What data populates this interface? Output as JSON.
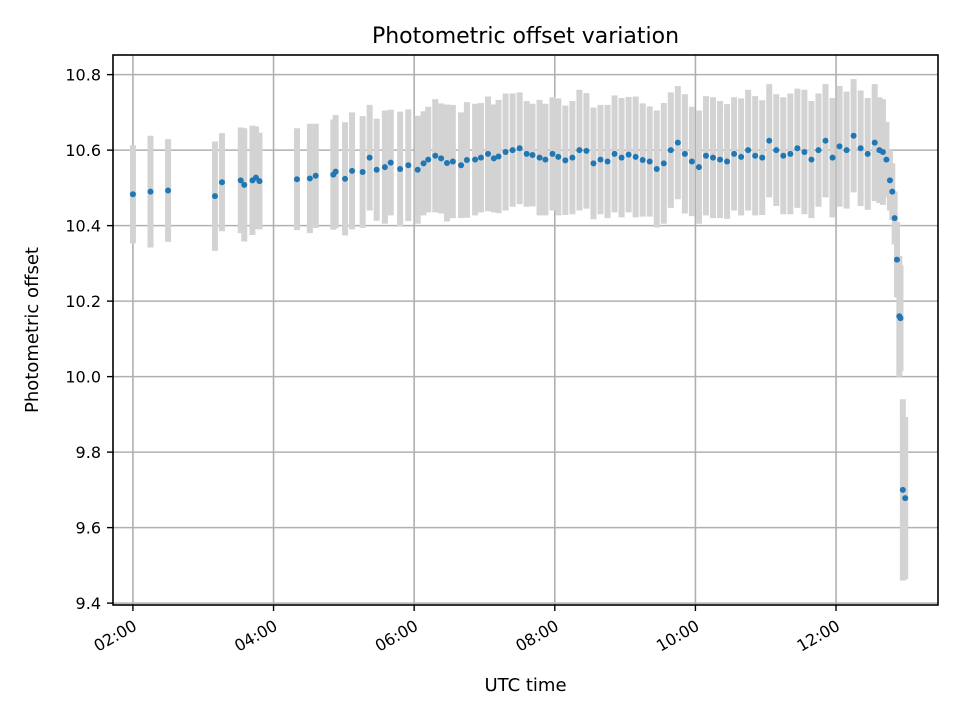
{
  "chart_data": {
    "type": "scatter",
    "title": "Photometric offset variation",
    "xlabel": "UTC time",
    "ylabel": "Photometric offset",
    "grid": true,
    "legend": "none",
    "xlim": [
      "01:43",
      "13:27"
    ],
    "ylim": [
      9.395,
      10.852
    ],
    "x_ticks": [
      "02:00",
      "04:00",
      "06:00",
      "08:00",
      "10:00",
      "12:00"
    ],
    "y_ticks": [
      "9.4",
      "9.6",
      "9.8",
      "10.0",
      "10.2",
      "10.4",
      "10.6",
      "10.8"
    ],
    "colors": {
      "points": "#1f77b4",
      "error_bars": "#d3d3d3",
      "grid": "#b0b0b0"
    },
    "series": [
      {
        "x": [
          "02:00",
          "02:15",
          "02:30",
          "03:10",
          "03:16",
          "03:32",
          "03:35",
          "03:42",
          "03:45",
          "03:48",
          "04:20",
          "04:31",
          "04:36",
          "04:51",
          "04:53",
          "05:01",
          "05:07",
          "05:16",
          "05:22",
          "05:28",
          "05:35",
          "05:40",
          "05:48",
          "05:55",
          "06:03",
          "06:08",
          "06:12",
          "06:18",
          "06:23",
          "06:28",
          "06:33",
          "06:40",
          "06:45",
          "06:52",
          "06:57",
          "07:03",
          "07:08",
          "07:12",
          "07:18",
          "07:24",
          "07:30",
          "07:36",
          "07:41",
          "07:47",
          "07:52",
          "07:58",
          "08:03",
          "08:09",
          "08:15",
          "08:21",
          "08:27",
          "08:33",
          "08:39",
          "08:45",
          "08:51",
          "08:57",
          "09:03",
          "09:09",
          "09:15",
          "09:21",
          "09:27",
          "09:33",
          "09:39",
          "09:45",
          "09:51",
          "09:57",
          "10:03",
          "10:09",
          "10:15",
          "10:21",
          "10:27",
          "10:33",
          "10:39",
          "10:45",
          "10:51",
          "10:57",
          "11:03",
          "11:09",
          "11:15",
          "11:21",
          "11:27",
          "11:33",
          "11:39",
          "11:45",
          "11:51",
          "11:57",
          "12:03",
          "12:09",
          "12:15",
          "12:21",
          "12:27",
          "12:33",
          "12:37",
          "12:40",
          "12:43",
          "12:46",
          "12:48",
          "12:50",
          "12:52",
          "12:54",
          "12:55",
          "12:57",
          "12:59"
        ],
        "y": [
          10.483,
          10.49,
          10.493,
          10.478,
          10.515,
          10.52,
          10.508,
          10.52,
          10.527,
          10.518,
          10.523,
          10.525,
          10.532,
          10.535,
          10.543,
          10.524,
          10.545,
          10.542,
          10.58,
          10.548,
          10.555,
          10.567,
          10.55,
          10.56,
          10.548,
          10.565,
          10.575,
          10.585,
          10.578,
          10.566,
          10.57,
          10.56,
          10.574,
          10.575,
          10.58,
          10.59,
          10.578,
          10.583,
          10.595,
          10.6,
          10.605,
          10.59,
          10.587,
          10.58,
          10.575,
          10.59,
          10.582,
          10.573,
          10.58,
          10.6,
          10.598,
          10.565,
          10.575,
          10.57,
          10.59,
          10.58,
          10.588,
          10.582,
          10.574,
          10.57,
          10.55,
          10.565,
          10.6,
          10.62,
          10.59,
          10.57,
          10.555,
          10.585,
          10.58,
          10.575,
          10.57,
          10.59,
          10.582,
          10.6,
          10.585,
          10.58,
          10.625,
          10.6,
          10.585,
          10.59,
          10.605,
          10.595,
          10.575,
          10.6,
          10.625,
          10.58,
          10.61,
          10.6,
          10.638,
          10.605,
          10.59,
          10.62,
          10.6,
          10.595,
          10.575,
          10.52,
          10.49,
          10.42,
          10.31,
          10.16,
          10.155,
          9.7,
          9.678
        ],
        "error": [
          0.13,
          0.148,
          0.136,
          0.145,
          0.13,
          0.14,
          0.15,
          0.145,
          0.136,
          0.128,
          0.135,
          0.145,
          0.138,
          0.146,
          0.15,
          0.15,
          0.155,
          0.148,
          0.14,
          0.135,
          0.15,
          0.14,
          0.152,
          0.148,
          0.143,
          0.138,
          0.14,
          0.15,
          0.146,
          0.155,
          0.15,
          0.14,
          0.153,
          0.148,
          0.145,
          0.152,
          0.143,
          0.15,
          0.155,
          0.15,
          0.148,
          0.14,
          0.136,
          0.153,
          0.148,
          0.15,
          0.155,
          0.145,
          0.15,
          0.16,
          0.153,
          0.148,
          0.145,
          0.15,
          0.155,
          0.158,
          0.153,
          0.16,
          0.15,
          0.146,
          0.155,
          0.16,
          0.153,
          0.15,
          0.158,
          0.145,
          0.15,
          0.158,
          0.16,
          0.155,
          0.152,
          0.15,
          0.155,
          0.16,
          0.158,
          0.152,
          0.15,
          0.148,
          0.155,
          0.16,
          0.158,
          0.165,
          0.155,
          0.15,
          0.15,
          0.158,
          0.16,
          0.155,
          0.15,
          0.153,
          0.148,
          0.155,
          0.14,
          0.14,
          0.1,
          0.08,
          0.075,
          0.07,
          0.1,
          0.16,
          0.14,
          0.24,
          0.215
        ]
      }
    ]
  }
}
